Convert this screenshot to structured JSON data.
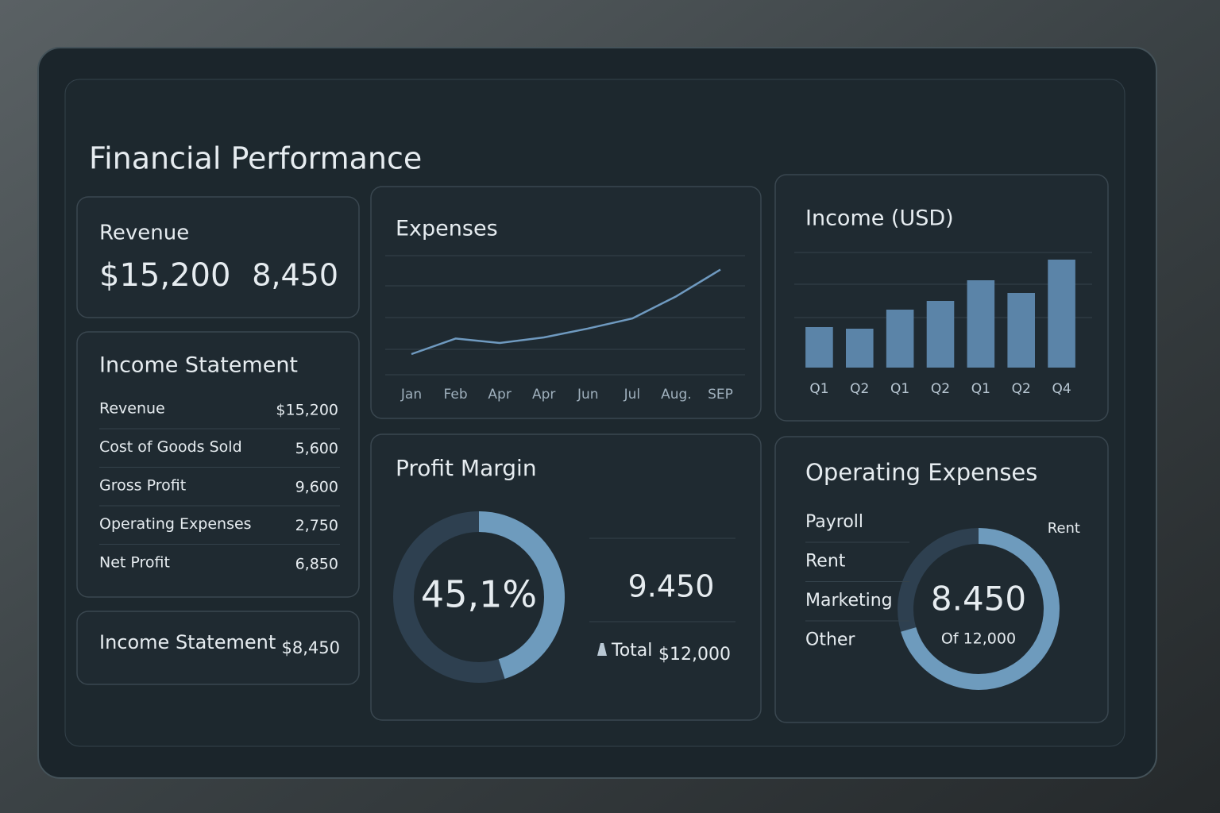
{
  "header": {
    "title": "Financial Performance"
  },
  "revenue_card": {
    "title": "Revenue",
    "value": "$15,200",
    "secondary": "8,450"
  },
  "income_statement": {
    "title": "Income Statement",
    "rows": [
      [
        "Revenue",
        "$15,200"
      ],
      [
        "Cost of Goods Sold",
        "5,600"
      ],
      [
        "Gross Profit",
        "9,600"
      ],
      [
        "Operating Expenses",
        "2,750"
      ],
      [
        "Net Profit",
        "6,850"
      ]
    ]
  },
  "summary_card": {
    "label": "Income Statement",
    "value": "$8,450"
  },
  "chart_data": [
    {
      "type": "line",
      "title": "Expenses",
      "categories": [
        "Jan",
        "Feb",
        "Apr",
        "Apr",
        "Jun",
        "Jul",
        "Aug.",
        "SEP"
      ],
      "values": [
        10,
        24,
        20,
        25,
        33,
        42,
        62,
        86
      ],
      "color": "#6f9ac0",
      "ylim": [
        0,
        100
      ]
    },
    {
      "type": "bar",
      "title": "Income (USD)",
      "categories": [
        "Q1",
        "Q2",
        "Q1",
        "Q2",
        "Q1",
        "Q2",
        "Q4"
      ],
      "values": [
        51,
        49,
        73,
        84,
        110,
        94,
        136
      ],
      "color": "#5b84a8",
      "ylim": [
        0,
        150
      ]
    },
    {
      "type": "donut",
      "title": "Profit Margin",
      "value": 45.1,
      "value_label": "45,1%",
      "ylim": [
        0,
        100
      ],
      "color": "#6e9bbd",
      "stats": {
        "value": "9.450",
        "total_label": "Total",
        "total": "$12,000"
      }
    },
    {
      "type": "donut",
      "title": "Operating Expenses",
      "categories": [
        "Payroll",
        "Rent",
        "Marketing",
        "Other"
      ],
      "segment_label": "Rent",
      "value": 8450,
      "value_label": "8.450",
      "ylim": [
        0,
        12000
      ],
      "total_label": "Of 12,000",
      "color": "#6e9bbd"
    }
  ]
}
